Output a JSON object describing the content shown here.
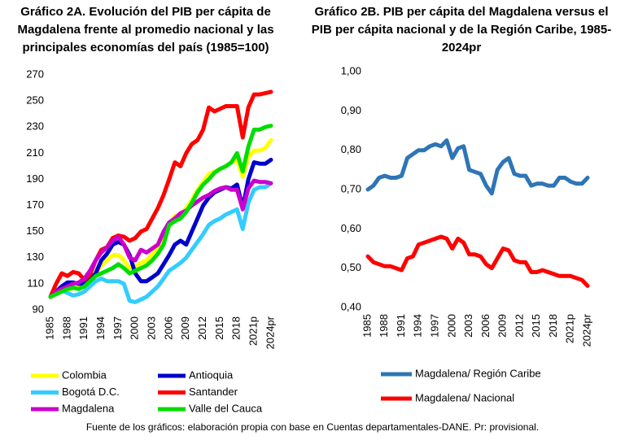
{
  "chart_data": [
    {
      "type": "line",
      "title": "Gráfico 2A. Evolución del PIB per cápita de Magdalena frente al promedio nacional y las principales economías del país (1985=100)",
      "categories": [
        "1985",
        null,
        null,
        "1988",
        null,
        null,
        "1991",
        null,
        null,
        "1994",
        null,
        null,
        "1997",
        null,
        null,
        "2000",
        null,
        null,
        "2003",
        null,
        null,
        "2006",
        null,
        null,
        "2009",
        null,
        null,
        "2012",
        null,
        null,
        "2015",
        null,
        null,
        "2018",
        null,
        null,
        "2021p",
        null,
        null,
        "2024pr"
      ],
      "ylim": [
        90,
        270
      ],
      "yticks": [
        90,
        110,
        130,
        150,
        170,
        190,
        210,
        230,
        250,
        270
      ],
      "legend": "bottom",
      "series": [
        {
          "name": "Colombia",
          "color": "#ffff00",
          "values": [
            100,
            102,
            104,
            105,
            107,
            107,
            108,
            112,
            118,
            124,
            128,
            132,
            132,
            128,
            122,
            123,
            126,
            128,
            133,
            138,
            146,
            155,
            162,
            163,
            168,
            174,
            182,
            188,
            194,
            196,
            198,
            200,
            203,
            205,
            192,
            207,
            212,
            212,
            214,
            220
          ]
        },
        {
          "name": "Antioquia",
          "color": "#0000cc",
          "values": [
            100,
            104,
            108,
            111,
            111,
            110,
            110,
            113,
            118,
            128,
            133,
            140,
            142,
            140,
            132,
            118,
            112,
            112,
            115,
            118,
            125,
            132,
            140,
            143,
            140,
            150,
            160,
            170,
            176,
            180,
            182,
            184,
            183,
            186,
            168,
            190,
            203,
            202,
            202,
            205
          ]
        },
        {
          "name": "Bogotá D.C.",
          "color": "#33ccff",
          "values": [
            100,
            103,
            105,
            103,
            101,
            102,
            104,
            108,
            112,
            114,
            112,
            112,
            112,
            110,
            97,
            96,
            98,
            100,
            104,
            108,
            114,
            120,
            123,
            126,
            130,
            136,
            142,
            148,
            155,
            158,
            160,
            163,
            165,
            167,
            152,
            172,
            182,
            184,
            184,
            187
          ]
        },
        {
          "name": "Santander",
          "color": "#ff0000",
          "values": [
            100,
            110,
            118,
            116,
            119,
            118,
            113,
            117,
            128,
            136,
            138,
            145,
            147,
            146,
            143,
            145,
            150,
            152,
            160,
            168,
            178,
            190,
            203,
            200,
            210,
            217,
            220,
            228,
            245,
            242,
            244,
            246,
            246,
            246,
            222,
            245,
            255,
            255,
            256,
            257
          ]
        },
        {
          "name": "Magdalena",
          "color": "#cc00cc",
          "values": [
            100,
            104,
            106,
            108,
            110,
            111,
            114,
            120,
            128,
            134,
            138,
            143,
            146,
            140,
            130,
            128,
            136,
            134,
            137,
            140,
            150,
            157,
            160,
            164,
            166,
            170,
            173,
            176,
            178,
            181,
            183,
            184,
            182,
            182,
            167,
            183,
            189,
            188,
            188,
            187
          ]
        },
        {
          "name": "Valle del Cauca",
          "color": "#00dd00",
          "values": [
            100,
            102,
            104,
            106,
            107,
            106,
            108,
            112,
            116,
            118,
            120,
            122,
            125,
            122,
            118,
            120,
            122,
            124,
            128,
            133,
            140,
            155,
            158,
            160,
            165,
            172,
            180,
            186,
            190,
            195,
            198,
            200,
            203,
            210,
            196,
            215,
            228,
            228,
            230,
            231
          ]
        }
      ]
    },
    {
      "type": "line",
      "title": "Gráfico 2B. PIB per cápita del Magdalena versus el PIB per cápita nacional y de la Región Caribe, 1985-2024pr",
      "categories": [
        "1985",
        null,
        null,
        "1988",
        null,
        null,
        "1991",
        null,
        null,
        "1994",
        null,
        null,
        "1997",
        null,
        null,
        "2000",
        null,
        null,
        "2003",
        null,
        null,
        "2006",
        null,
        null,
        "2009",
        null,
        null,
        "2012",
        null,
        null,
        "2015",
        null,
        null,
        "2018",
        null,
        null,
        "2021p",
        null,
        null,
        "2024pr"
      ],
      "ylim": [
        0.4,
        1.0
      ],
      "yticks": [
        {
          "value": 0.4,
          "label": "0,40"
        },
        {
          "value": 0.5,
          "label": "0,50"
        },
        {
          "value": 0.6,
          "label": "0,60"
        },
        {
          "value": 0.7,
          "label": "0,70"
        },
        {
          "value": 0.8,
          "label": "0,80"
        },
        {
          "value": 0.9,
          "label": "0,90"
        },
        {
          "value": 1.0,
          "label": "1,00"
        }
      ],
      "legend": "bottom",
      "series": [
        {
          "name": "Magdalena/ Región Caribe",
          "color": "#2e75b6",
          "values": [
            0.7,
            0.71,
            0.73,
            0.735,
            0.73,
            0.73,
            0.735,
            0.78,
            0.79,
            0.8,
            0.8,
            0.81,
            0.815,
            0.81,
            0.825,
            0.78,
            0.805,
            0.81,
            0.75,
            0.745,
            0.74,
            0.71,
            0.69,
            0.75,
            0.77,
            0.78,
            0.74,
            0.735,
            0.735,
            0.71,
            0.715,
            0.715,
            0.71,
            0.71,
            0.73,
            0.73,
            0.72,
            0.715,
            0.715,
            0.73
          ]
        },
        {
          "name": "Magdalena/ Nacional",
          "color": "#ff0000",
          "values": [
            0.53,
            0.515,
            0.51,
            0.505,
            0.505,
            0.5,
            0.495,
            0.525,
            0.53,
            0.56,
            0.565,
            0.57,
            0.575,
            0.58,
            0.575,
            0.55,
            0.575,
            0.565,
            0.535,
            0.535,
            0.53,
            0.51,
            0.5,
            0.525,
            0.55,
            0.545,
            0.52,
            0.515,
            0.515,
            0.49,
            0.49,
            0.495,
            0.49,
            0.485,
            0.48,
            0.48,
            0.48,
            0.475,
            0.47,
            0.455
          ]
        }
      ]
    }
  ],
  "footnote": "Fuente de los gráficos: elaboración propia con base en Cuentas departamentales-DANE. Pr: provisional."
}
